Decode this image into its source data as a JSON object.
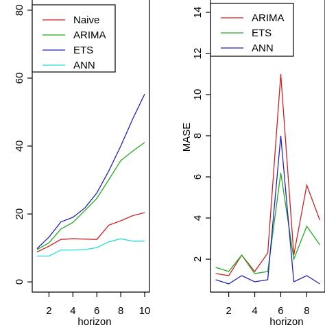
{
  "chart_data": [
    {
      "type": "line",
      "title": "",
      "xlabel": "horizon",
      "ylabel": "",
      "x": [
        1,
        2,
        3,
        4,
        5,
        6,
        7,
        8,
        9,
        10
      ],
      "xticks": [
        "2",
        "4",
        "6",
        "8",
        "10"
      ],
      "xtick_values": [
        2,
        4,
        6,
        8,
        10
      ],
      "yticks": [
        "0",
        "20",
        "40",
        "60",
        "80"
      ],
      "ytick_values": [
        0,
        20,
        40,
        60,
        80
      ],
      "xlim": [
        0.6,
        10.4
      ],
      "ylim": [
        -3,
        83
      ],
      "legend": "top-left",
      "grid": false,
      "series": [
        {
          "name": "Naive",
          "color": "#cc2222",
          "values": [
            8.8,
            10.5,
            12.5,
            12.7,
            12.6,
            12.5,
            16.7,
            18.0,
            19.5,
            20.4
          ]
        },
        {
          "name": "ARIMA",
          "color": "#22aa22",
          "values": [
            9.5,
            11.5,
            15.6,
            17.5,
            21.0,
            24.6,
            30.1,
            35.7,
            38.5,
            41.1
          ]
        },
        {
          "name": "ETS",
          "color": "#2222bb",
          "values": [
            9.8,
            13.2,
            17.7,
            19.0,
            21.8,
            26.2,
            32.7,
            40.0,
            48.0,
            55.3
          ]
        },
        {
          "name": "ANN",
          "color": "#22dddd",
          "values": [
            7.6,
            7.6,
            9.4,
            9.4,
            9.5,
            10.1,
            11.8,
            12.7,
            12.0,
            12.0
          ]
        }
      ]
    },
    {
      "type": "line",
      "title": "",
      "xlabel": "horizon",
      "ylabel": "MASE",
      "x": [
        1,
        2,
        3,
        4,
        5,
        6,
        7,
        8,
        9
      ],
      "xticks": [
        "2",
        "4",
        "6",
        "8"
      ],
      "xtick_values": [
        2,
        4,
        6,
        8
      ],
      "yticks": [
        "2",
        "4",
        "6",
        "8",
        "10",
        "12",
        "14"
      ],
      "ytick_values": [
        2,
        4,
        6,
        8,
        10,
        12,
        14
      ],
      "xlim": [
        0.6,
        9.4
      ],
      "ylim": [
        0.4,
        14.6
      ],
      "legend": "top-left",
      "grid": false,
      "series": [
        {
          "name": "ARIMA",
          "color": "#cc2222",
          "values": [
            1.3,
            1.2,
            2.2,
            1.4,
            2.3,
            11.0,
            2.2,
            5.6,
            3.9
          ]
        },
        {
          "name": "ETS",
          "color": "#22aa22",
          "values": [
            1.6,
            1.4,
            2.2,
            1.3,
            1.4,
            6.2,
            2.0,
            3.6,
            2.7
          ]
        },
        {
          "name": "ANN",
          "color": "#2222bb",
          "values": [
            1.0,
            0.8,
            1.2,
            0.9,
            1.0,
            8.0,
            0.9,
            1.2,
            0.8
          ]
        }
      ]
    }
  ]
}
